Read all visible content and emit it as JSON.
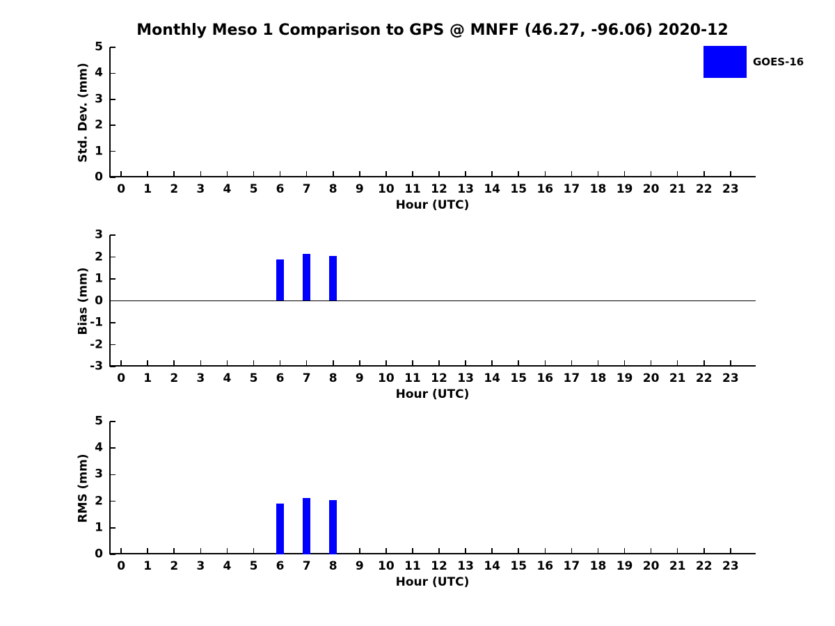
{
  "figure": {
    "title": "Monthly Meso 1 Comparison to GPS @ MNFF (46.27, -96.06) 2020-12",
    "legend": {
      "label": "GOES-16",
      "color": "#0000ff"
    }
  },
  "chart_data": [
    {
      "type": "bar",
      "ylabel": "Std. Dev. (mm)",
      "xlabel": "Hour (UTC)",
      "ylim": [
        0,
        5
      ],
      "yticks": [
        0,
        1,
        2,
        3,
        4,
        5
      ],
      "xlim": [
        -0.45,
        23.95
      ],
      "xticks": [
        0,
        1,
        2,
        3,
        4,
        5,
        6,
        7,
        8,
        9,
        10,
        11,
        12,
        13,
        14,
        15,
        16,
        17,
        18,
        19,
        20,
        21,
        22,
        23
      ],
      "zero_line": false,
      "bar_width": 0.3,
      "grid": false,
      "series": [
        {
          "name": "GOES-16",
          "color": "#0000ff",
          "x": [
            6,
            7,
            8
          ],
          "values": [
            0.0,
            0.0,
            0.0
          ]
        }
      ]
    },
    {
      "type": "bar",
      "ylabel": "Bias (mm)",
      "xlabel": "Hour (UTC)",
      "ylim": [
        -3,
        3
      ],
      "yticks": [
        -3,
        -2,
        -1,
        0,
        1,
        2,
        3
      ],
      "xlim": [
        -0.45,
        23.95
      ],
      "xticks": [
        0,
        1,
        2,
        3,
        4,
        5,
        6,
        7,
        8,
        9,
        10,
        11,
        12,
        13,
        14,
        15,
        16,
        17,
        18,
        19,
        20,
        21,
        22,
        23
      ],
      "zero_line": true,
      "bar_width": 0.3,
      "grid": false,
      "series": [
        {
          "name": "GOES-16",
          "color": "#0000ff",
          "x": [
            6,
            7,
            8
          ],
          "values": [
            1.9,
            2.15,
            2.05
          ]
        }
      ]
    },
    {
      "type": "bar",
      "ylabel": "RMS (mm)",
      "xlabel": "Hour (UTC)",
      "ylim": [
        0,
        5
      ],
      "yticks": [
        0,
        1,
        2,
        3,
        4,
        5
      ],
      "xlim": [
        -0.45,
        23.95
      ],
      "xticks": [
        0,
        1,
        2,
        3,
        4,
        5,
        6,
        7,
        8,
        9,
        10,
        11,
        12,
        13,
        14,
        15,
        16,
        17,
        18,
        19,
        20,
        21,
        22,
        23
      ],
      "zero_line": false,
      "bar_width": 0.3,
      "grid": false,
      "series": [
        {
          "name": "GOES-16",
          "color": "#0000ff",
          "x": [
            6,
            7,
            8
          ],
          "values": [
            1.9,
            2.13,
            2.04
          ]
        }
      ]
    }
  ]
}
